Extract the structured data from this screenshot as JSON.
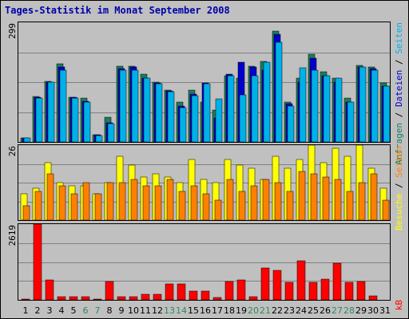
{
  "title": "Tages-Statistik im Monat September 2008",
  "colors": {
    "hits": "#1a7f5a",
    "files": "#0000cc",
    "pages": "#00b0e8",
    "visits": "#ffff00",
    "sites": "#ff8000",
    "kbytes": "#ff0000",
    "weekend_label": "#2e8b57",
    "weekday_label": "#000000"
  },
  "chart_data": [
    {
      "type": "bar",
      "name": "traffic",
      "axis_max_label": "299",
      "ylim": [
        0,
        299
      ],
      "categories": [
        "1",
        "2",
        "3",
        "4",
        "5",
        "6",
        "7",
        "8",
        "9",
        "10",
        "11",
        "12",
        "13",
        "14",
        "15",
        "16",
        "17",
        "18",
        "19",
        "20",
        "21",
        "22",
        "23",
        "24",
        "25",
        "26",
        "27",
        "28",
        "29",
        "30",
        "31"
      ],
      "series": [
        {
          "name": "Anfragen",
          "values": [
            10,
            114,
            152,
            196,
            112,
            110,
            18,
            62,
            190,
            190,
            170,
            150,
            130,
            100,
            130,
            100,
            80,
            165,
            160,
            190,
            202,
            278,
            100,
            160,
            220,
            175,
            160,
            110,
            192,
            188,
            147
          ]
        },
        {
          "name": "Dateien",
          "values": [
            10,
            112,
            150,
            188,
            112,
            102,
            18,
            48,
            183,
            188,
            160,
            148,
            128,
            90,
            120,
            148,
            60,
            170,
            200,
            187,
            180,
            270,
            95,
            150,
            210,
            165,
            150,
            100,
            188,
            184,
            140
          ]
        },
        {
          "name": "Seiten",
          "values": [
            10,
            110,
            150,
            180,
            110,
            100,
            16,
            45,
            180,
            180,
            160,
            145,
            125,
            85,
            115,
            145,
            108,
            165,
            118,
            165,
            200,
            250,
            90,
            185,
            180,
            165,
            160,
            100,
            188,
            180,
            140
          ]
        }
      ],
      "series_labels": [
        "Anfragen",
        "Dateien",
        "Seiten"
      ]
    },
    {
      "type": "bar",
      "name": "visits",
      "axis_max_label": "26",
      "ylim": [
        0,
        26
      ],
      "categories": [
        "1",
        "2",
        "3",
        "4",
        "5",
        "6",
        "7",
        "8",
        "9",
        "10",
        "11",
        "12",
        "13",
        "14",
        "15",
        "16",
        "17",
        "18",
        "19",
        "20",
        "21",
        "22",
        "23",
        "24",
        "25",
        "26",
        "27",
        "28",
        "29",
        "30",
        "31"
      ],
      "series": [
        {
          "name": "Besuche",
          "values": [
            9,
            11,
            20,
            13,
            12,
            12,
            9,
            13,
            22,
            19,
            15,
            16,
            15,
            13,
            21,
            14,
            13,
            21,
            19,
            18,
            14,
            22,
            18,
            21,
            26,
            20,
            25,
            22,
            26,
            18,
            11
          ]
        },
        {
          "name": "Seiten",
          "values": [
            5,
            10,
            16,
            12,
            9,
            13,
            9,
            13,
            13,
            14,
            12,
            12,
            14,
            10,
            12,
            9,
            7,
            14,
            10,
            12,
            14,
            13,
            10,
            17,
            16,
            15,
            14,
            10,
            13,
            16,
            7
          ]
        }
      ],
      "series_labels": [
        "Besuche",
        "Seiten"
      ]
    },
    {
      "type": "bar",
      "name": "kbytes",
      "axis_max_label": "2619",
      "ylim": [
        0,
        2619
      ],
      "categories": [
        "1",
        "2",
        "3",
        "4",
        "5",
        "6",
        "7",
        "8",
        "9",
        "10",
        "11",
        "12",
        "13",
        "14",
        "15",
        "16",
        "17",
        "18",
        "19",
        "20",
        "21",
        "22",
        "23",
        "24",
        "25",
        "26",
        "27",
        "28",
        "29",
        "30",
        "31"
      ],
      "series": [
        {
          "name": "kB",
          "values": [
            30,
            2619,
            700,
            110,
            110,
            110,
            30,
            640,
            110,
            110,
            190,
            190,
            550,
            540,
            300,
            290,
            90,
            640,
            700,
            120,
            1090,
            1020,
            600,
            1360,
            620,
            720,
            1260,
            600,
            640,
            130,
            0
          ]
        }
      ],
      "series_labels": [
        "kB"
      ]
    }
  ],
  "side_labels": {
    "panel1": [
      "Anfragen",
      "Dateien",
      "Seiten"
    ],
    "panel2": [
      "Besuche",
      "Seiten"
    ],
    "panel3": [
      "kB"
    ],
    "sep": " / "
  },
  "weekend_days": [
    "6",
    "7",
    "13",
    "14",
    "20",
    "21",
    "27",
    "28"
  ]
}
